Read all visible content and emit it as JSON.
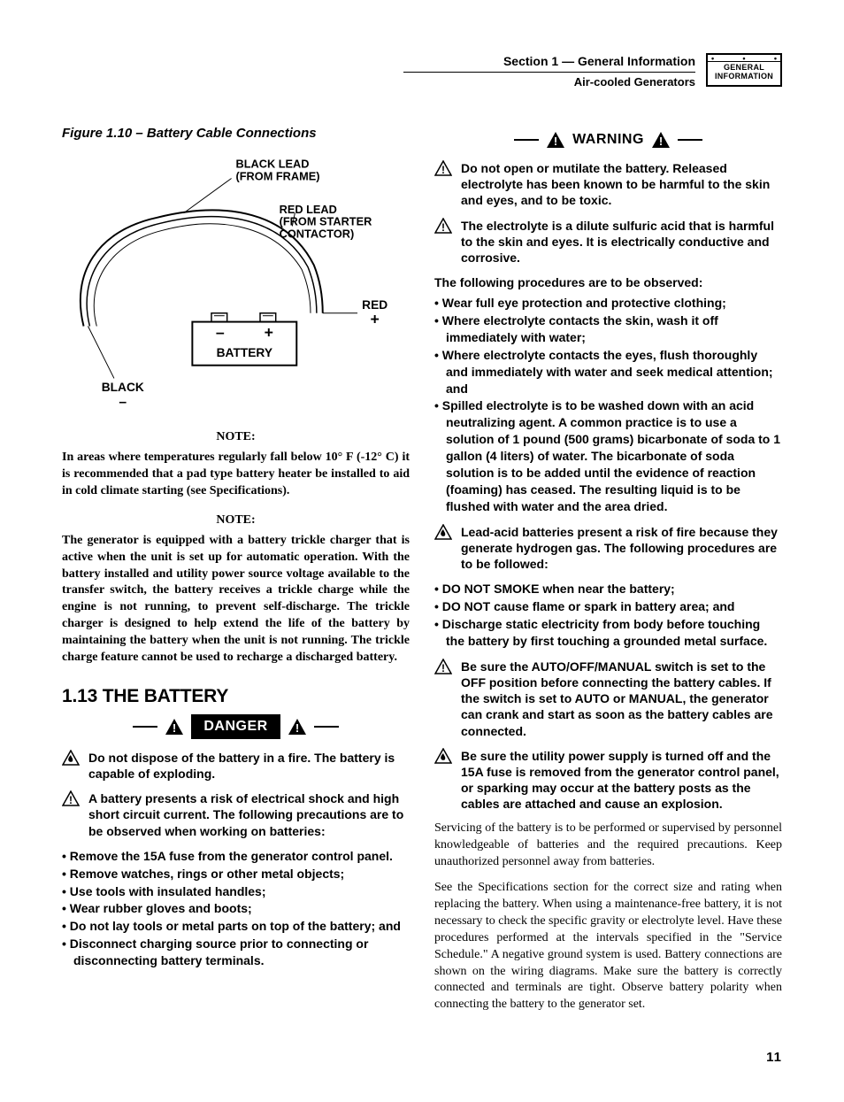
{
  "header": {
    "section_line": "Section 1 — General Information",
    "subline": "Air-cooled Generators",
    "tab_label_line1": "GENERAL",
    "tab_label_line2": "INFORMATION"
  },
  "left": {
    "fig_caption": "Figure 1.10 – Battery Cable Connections",
    "diagram": {
      "colors": {
        "stroke": "#000000",
        "fill_bg": "#ffffff"
      },
      "labels": {
        "black_lead_1": "BLACK LEAD",
        "black_lead_2": "(FROM FRAME)",
        "red_lead_1": "RED LEAD",
        "red_lead_2": "(FROM STARTER",
        "red_lead_3": "CONTACTOR)",
        "red": "RED",
        "plus": "+",
        "battery": "BATTERY",
        "minus": "–",
        "black": "BLACK",
        "neg_sym": "–",
        "bplus": "+",
        "bminus": "–"
      }
    },
    "note1_head": "NOTE:",
    "note1_body": "In areas where temperatures regularly fall below 10° F (-12° C) it is recommended that a pad type battery heater be installed to aid in cold climate starting (see Specifications).",
    "note2_head": "NOTE:",
    "note2_body": "The generator is equipped with a battery trickle charger that is active when the unit is set up for automatic operation. With the battery installed and utility power source voltage available to the transfer switch, the battery receives a trickle charge while the engine is not running, to prevent self-discharge. The trickle charger is designed to help extend the life of the battery by maintaining the battery when the unit is not running. The trickle charge feature cannot be used to recharge a discharged battery.",
    "section_heading": "1.13  THE BATTERY",
    "danger_label": "DANGER",
    "danger_items": [
      {
        "icon": "fire",
        "text": "Do not dispose of the battery in a fire. The battery is capable of exploding."
      },
      {
        "icon": "bang",
        "text": "A battery presents a risk of electrical shock and high short circuit current. The following precautions are to be observed when working on batteries:"
      }
    ],
    "danger_bullets": [
      "Remove the 15A fuse from the generator control panel.",
      "Remove watches, rings or other metal objects;",
      "Use tools with insulated handles;",
      "Wear rubber gloves and boots;",
      "Do not lay tools or metal parts on top of the battery; and",
      "Disconnect charging source prior to connecting or disconnecting battery terminals."
    ]
  },
  "right": {
    "warning_label": "WARNING",
    "warn_items_a": [
      {
        "icon": "bang",
        "text": "Do not open or mutilate the battery. Released electrolyte has been known to be harmful to the skin and eyes, and to be toxic."
      },
      {
        "icon": "bang",
        "text": "The electrolyte is a dilute sulfuric acid that is harmful to the skin and eyes. It is electrically conductive and corrosive."
      }
    ],
    "lead_a": "The following procedures are to be observed:",
    "bullets_a": [
      "Wear full eye protection and protective clothing;",
      "Where electrolyte contacts the skin, wash it off immediately with water;",
      "Where electrolyte contacts the eyes, flush thoroughly and immediately with water and seek medical attention; and",
      "Spilled electrolyte is to be washed down with an acid neutralizing agent. A common practice is to use a solution of 1 pound (500 grams) bicarbonate of soda to 1 gallon (4 liters) of water. The bicarbonate of soda solution is to be added until the evidence of reaction (foaming) has ceased. The resulting liquid is to be flushed with water and the area dried."
    ],
    "warn_items_b": [
      {
        "icon": "fire",
        "text": "Lead-acid batteries present a risk of fire because they generate hydrogen gas. The following procedures are to be followed:"
      }
    ],
    "bullets_b": [
      "DO NOT SMOKE when near the battery;",
      "DO NOT cause flame or spark in battery area; and",
      "Discharge static electricity from body before touching the battery by first touching a grounded metal surface."
    ],
    "warn_items_c": [
      {
        "icon": "bang",
        "text": "Be sure the AUTO/OFF/MANUAL switch is set to the OFF position before connecting the battery cables. If the switch is set to AUTO or MANUAL, the generator can crank and start as soon as the battery cables are connected."
      },
      {
        "icon": "fire",
        "text": "Be sure the utility power supply is turned off and the 15A fuse is removed from the generator control panel, or sparking may occur at the battery posts as the cables are attached and cause an explosion."
      }
    ],
    "para1": "Servicing of the battery is to be performed or supervised by personnel knowledgeable of batteries and the required precautions. Keep unauthorized personnel away from batteries.",
    "para2": "See the Specifications section for the correct size and rating when replacing the battery. When using a maintenance-free battery, it is not necessary to check the specific gravity or electrolyte level. Have these procedures performed at the intervals specified in the \"Service Schedule.\" A negative ground system is used. Battery connections are shown on the wiring diagrams. Make sure the battery is correctly connected and terminals are tight. Observe battery polarity when connecting the battery to the generator set."
  },
  "page_number": "11"
}
